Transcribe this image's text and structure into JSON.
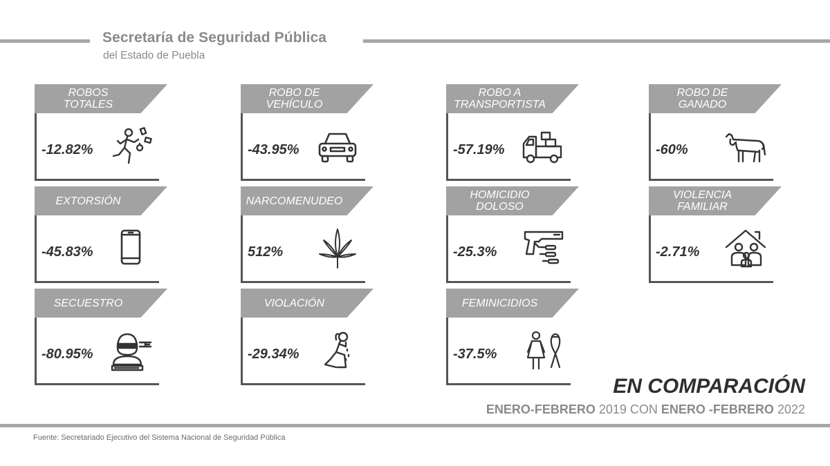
{
  "header": {
    "title": "Secretaría de Seguridad Pública",
    "subtitle": "del Estado de Puebla"
  },
  "cards": [
    {
      "label": "ROBOS\nTOTALES",
      "value": "-12.82%",
      "icon": "running-thief-icon"
    },
    {
      "label": "ROBO DE\nVEHÍCULO",
      "value": "-43.95%",
      "icon": "car-icon"
    },
    {
      "label": "ROBO A\nTRANSPORTISTA",
      "value": "-57.19%",
      "icon": "truck-icon"
    },
    {
      "label": "ROBO DE\nGANADO",
      "value": "-60%",
      "icon": "cow-icon"
    },
    {
      "label": "EXTORSIÓN",
      "value": "-45.83%",
      "icon": "phone-icon"
    },
    {
      "label": "NARCOMENUDEO",
      "value": "512%",
      "icon": "cannabis-leaf-icon"
    },
    {
      "label": "HOMICIDIO\nDOLOSO",
      "value": "-25.3%",
      "icon": "gun-icon"
    },
    {
      "label": "VIOLENCIA\nFAMILIAR",
      "value": "-2.71%",
      "icon": "family-house-icon"
    },
    {
      "label": "SECUESTRO",
      "value": "-80.95%",
      "icon": "hostage-icon"
    },
    {
      "label": "VIOLACIÓN",
      "value": "-29.34%",
      "icon": "crying-person-icon"
    },
    {
      "label": "FEMINICIDIOS",
      "value": "-37.5%",
      "icon": "woman-ribbon-icon"
    }
  ],
  "comparison": {
    "title": "EN COMPARACIÓN",
    "period_a": "ENERO-FEBRERO",
    "year_a": "2019",
    "connector": "CON",
    "period_b": "ENERO -FEBRERO",
    "year_b": "2022"
  },
  "source": "Fuente: Secretariado Ejecutivo del  Sistema Nacional de Seguridad Pública",
  "colors": {
    "tag": "#a2a2a2",
    "rule": "#a7a7a7",
    "text_dark": "#333333",
    "text_gray": "#8a8a8a"
  }
}
